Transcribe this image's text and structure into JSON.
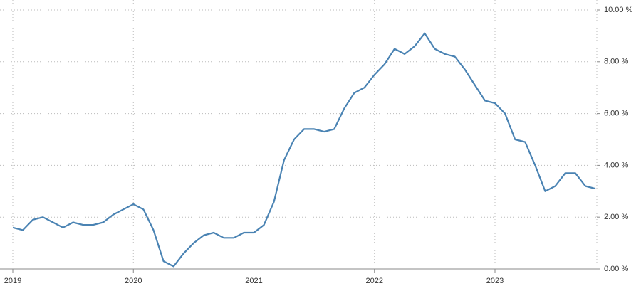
{
  "chart_data": {
    "type": "line",
    "categories": [
      "2019",
      null,
      null,
      null,
      null,
      null,
      null,
      null,
      null,
      null,
      null,
      null,
      "2020",
      null,
      null,
      null,
      null,
      null,
      null,
      null,
      null,
      null,
      null,
      null,
      "2021",
      null,
      null,
      null,
      null,
      null,
      null,
      null,
      null,
      null,
      null,
      null,
      "2022",
      null,
      null,
      null,
      null,
      null,
      null,
      null,
      null,
      null,
      null,
      null,
      "2023",
      null,
      null,
      null,
      null,
      null,
      null,
      null,
      null,
      null,
      null
    ],
    "series": [
      {
        "color": "#4a83b3",
        "values": [
          1.6,
          1.5,
          1.9,
          2.0,
          1.8,
          1.6,
          1.8,
          1.7,
          1.7,
          1.8,
          2.1,
          2.3,
          2.5,
          2.3,
          1.5,
          0.3,
          0.1,
          0.6,
          1.0,
          1.3,
          1.4,
          1.2,
          1.2,
          1.4,
          1.4,
          1.7,
          2.6,
          4.2,
          5.0,
          5.4,
          5.4,
          5.3,
          5.4,
          6.2,
          6.8,
          7.0,
          7.5,
          7.9,
          8.5,
          8.3,
          8.6,
          9.1,
          8.5,
          8.3,
          8.2,
          7.7,
          7.1,
          6.5,
          6.4,
          6.0,
          5.0,
          4.9,
          4.0,
          3.0,
          3.2,
          3.7,
          3.7,
          3.2,
          3.1
        ]
      }
    ],
    "ylim": [
      0,
      10
    ],
    "yticks": [
      {
        "value": 0,
        "label": "0.00 %"
      },
      {
        "value": 2,
        "label": "2.00 %"
      },
      {
        "value": 4,
        "label": "4.00 %"
      },
      {
        "value": 6,
        "label": "6.00 %"
      },
      {
        "value": 8,
        "label": "8.00 %"
      },
      {
        "value": 10,
        "label": "10.00 %"
      }
    ],
    "grid": true,
    "y_axis_side": "right"
  }
}
